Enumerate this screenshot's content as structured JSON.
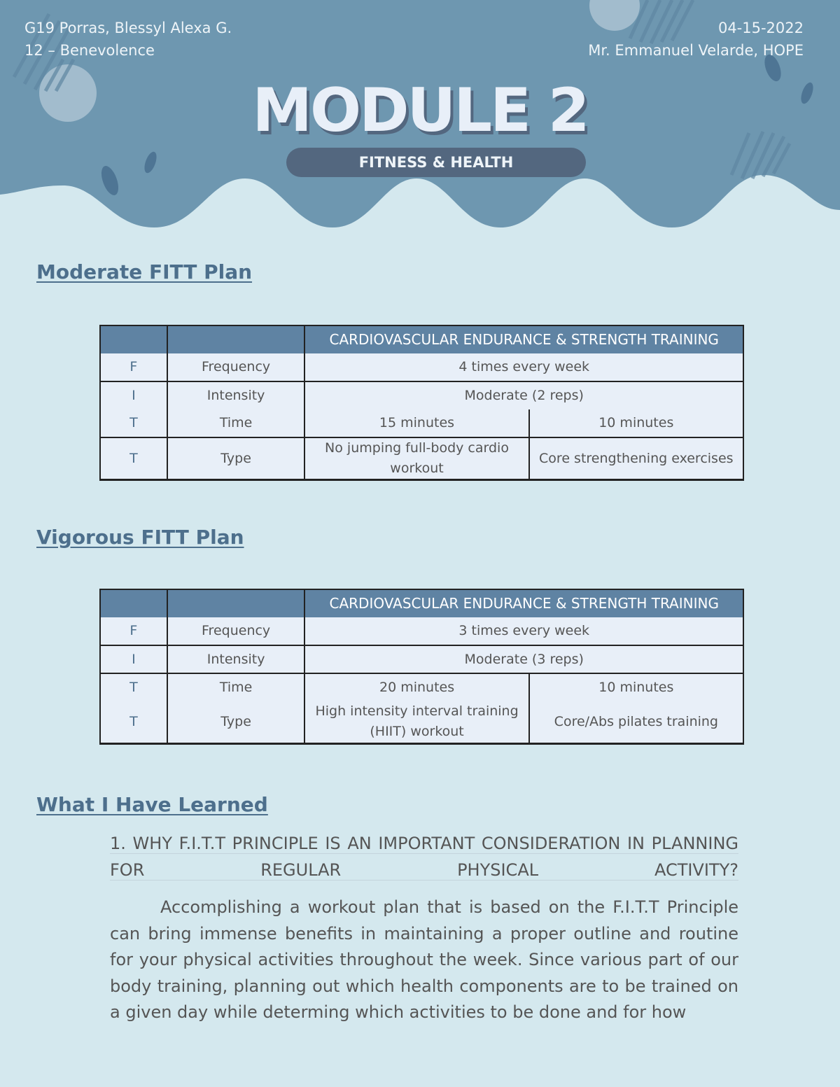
{
  "header": {
    "student": "G19 Porras, Blessyl Alexa G.",
    "section": "12 – Benevolence",
    "date": "04-15-2022",
    "teacher": "Mr. Emmanuel Velarde, HOPE",
    "title": "MODULE 2",
    "subtitle": "FITNESS & HEALTH"
  },
  "colors": {
    "header_bg": "#6e97b0",
    "page_bg": "#d4e8ee",
    "table_header": "#5f83a3",
    "pill": "#53677f",
    "heading": "#4d6f8c"
  },
  "moderate": {
    "heading": "Moderate FITT Plan",
    "col_header": "CARDIOVASCULAR ENDURANCE & STRENGTH TRAINING",
    "rows": [
      {
        "letter": "F",
        "label": "Frequency",
        "value": "4 times every week"
      },
      {
        "letter": "I",
        "label": "Intensity",
        "value": "Moderate (2 reps)"
      },
      {
        "letter": "T",
        "label": "Time",
        "a": "15 minutes",
        "b": "10 minutes"
      },
      {
        "letter": "T",
        "label": "Type",
        "a": "No jumping full-body cardio workout",
        "b": "Core strengthening exercises"
      }
    ]
  },
  "vigorous": {
    "heading": "Vigorous FITT Plan",
    "col_header": "CARDIOVASCULAR ENDURANCE & STRENGTH TRAINING",
    "rows": [
      {
        "letter": "F",
        "label": "Frequency",
        "value": "3 times every week"
      },
      {
        "letter": "I",
        "label": "Intensity",
        "value": "Moderate (3 reps)"
      },
      {
        "letter": "T",
        "label": "Time",
        "a": "20 minutes",
        "b": "10 minutes"
      },
      {
        "letter": "T",
        "label": "Type",
        "a": "High intensity interval training (HIIT) workout",
        "b": "Core/Abs pilates training"
      }
    ]
  },
  "learned": {
    "heading": "What I Have Learned",
    "question": "1. WHY F.I.T.T PRINCIPLE IS AN IMPORTANT CONSIDERATION IN PLANNING FOR REGULAR PHYSICAL ACTIVITY?",
    "answer": "Accomplishing a workout plan that is based on the F.I.T.T Principle can bring immense benefits in maintaining a proper outline and routine for your physical activities throughout the week. Since various part of our body training, planning out which health components are to be trained on a given day while determing which activities to be done and for how"
  }
}
